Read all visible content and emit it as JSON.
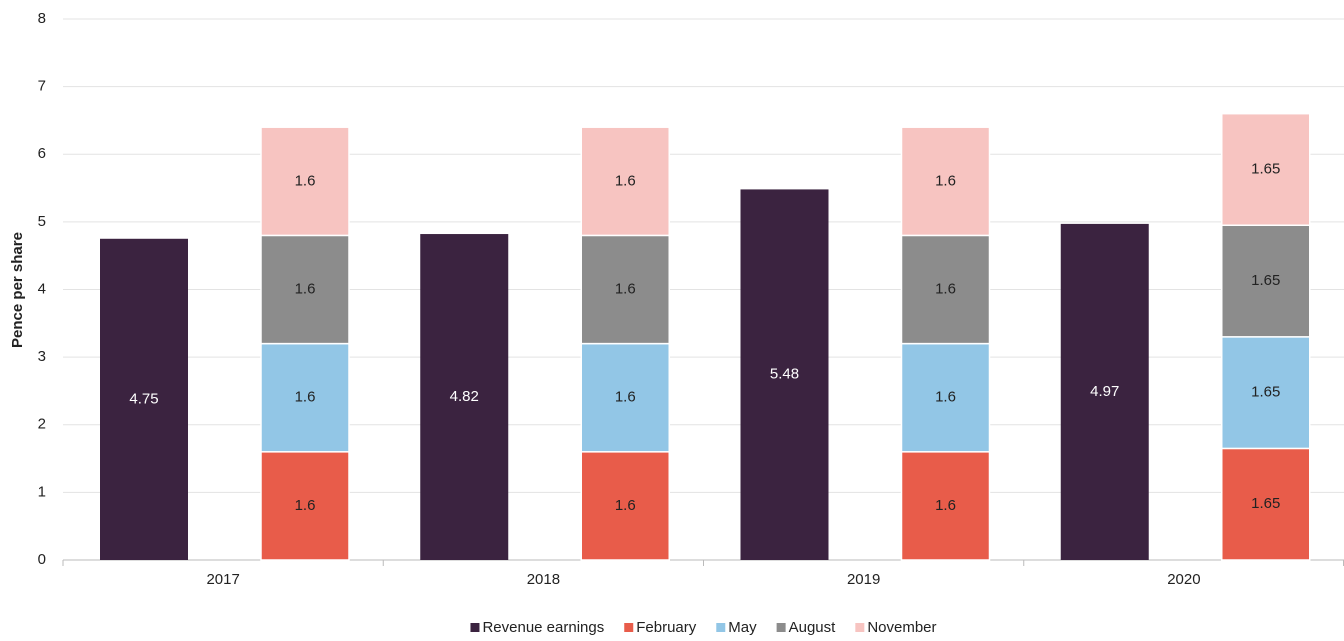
{
  "chart_data": {
    "type": "bar",
    "y_label": "Pence per share",
    "categories": [
      "2017",
      "2018",
      "2019",
      "2020"
    ],
    "series": [
      {
        "name": "Revenue earnings",
        "color": "#3b2340",
        "values": [
          4.75,
          4.82,
          5.48,
          4.97
        ]
      },
      {
        "name": "February",
        "color": "#e85c4a",
        "values": [
          1.6,
          1.6,
          1.6,
          1.65
        ]
      },
      {
        "name": "May",
        "color": "#92c6e6",
        "values": [
          1.6,
          1.6,
          1.6,
          1.65
        ]
      },
      {
        "name": "August",
        "color": "#8c8c8c",
        "values": [
          1.6,
          1.6,
          1.6,
          1.65
        ]
      },
      {
        "name": "November",
        "color": "#f7c4c1",
        "values": [
          1.6,
          1.6,
          1.6,
          1.65
        ]
      }
    ],
    "ylim": [
      0,
      8
    ],
    "yticks": [
      0,
      1,
      2,
      3,
      4,
      5,
      6,
      7,
      8
    ],
    "grid": true,
    "legend": "bottom"
  }
}
